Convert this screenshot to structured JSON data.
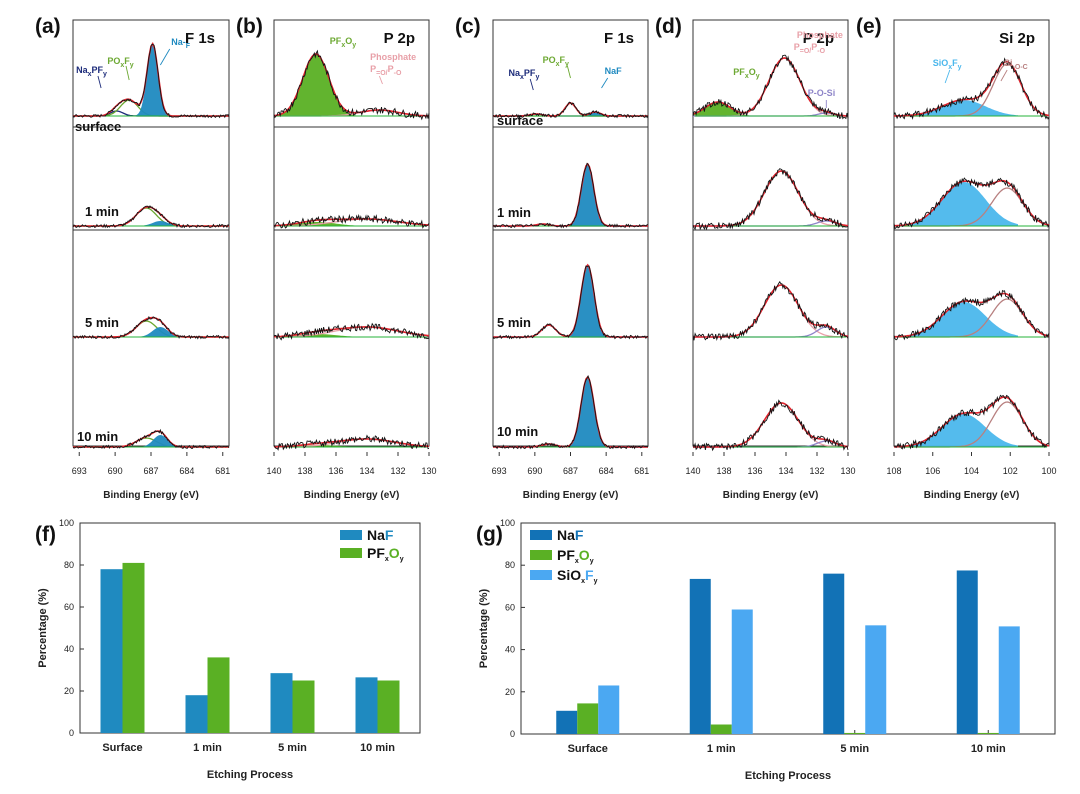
{
  "colors": {
    "naf": "#1f8ac0",
    "pfxoy": "#5ab024",
    "pfxoy_line": "#6ca832",
    "sioxfy": "#4bb7ec",
    "naf_g": "#1272b6",
    "sioxfy_g": "#4ba8f2",
    "envelope": "#e1232d",
    "data": "#141414",
    "baseline": "#25b33a",
    "naxpfy": "#1c2b7a",
    "phosphate": "#e8a0a8",
    "pos": "#8f86c9",
    "sioc": "#b88080"
  },
  "spectra": {
    "xlabel": "Binding Energy (eV)",
    "rows": [
      "surface",
      "1 min",
      "5 min",
      "10 min"
    ],
    "panels": [
      {
        "label": "(a)",
        "title": "F 1s",
        "row_labels": true,
        "ticks": [
          "693",
          "690",
          "687",
          "684",
          "681"
        ],
        "annotations": [
          {
            "parts": [
              "Na",
              "x",
              "PF",
              "y"
            ],
            "color": "#1c2b7a"
          },
          {
            "parts": [
              "PO",
              "x",
              "F",
              "y"
            ],
            "color": "#6ca832"
          },
          {
            "parts": [
              "Na-",
              "F"
            ],
            "color": "#1f8ac0"
          }
        ]
      },
      {
        "label": "(b)",
        "title": "P 2p",
        "row_labels": false,
        "ticks": [
          "140",
          "138",
          "136",
          "134",
          "132",
          "130"
        ],
        "annotations": [
          {
            "parts": [
              "PF",
              "x",
              "O",
              "y"
            ],
            "color": "#6ca832"
          },
          {
            "parts": [
              "Phosphate"
            ],
            "color": "#e8a0a8"
          },
          {
            "parts": [
              "P",
              "=O/",
              "P",
              "-O"
            ],
            "color": "#e8a0a8"
          }
        ]
      },
      {
        "label": "(c)",
        "title": "F 1s",
        "row_labels": true,
        "ticks": [
          "693",
          "690",
          "687",
          "684",
          "681"
        ],
        "annotations": [
          {
            "parts": [
              "Na",
              "x",
              "PF",
              "y"
            ],
            "color": "#1c2b7a"
          },
          {
            "parts": [
              "PO",
              "x",
              "F",
              "y"
            ],
            "color": "#6ca832"
          },
          {
            "parts": [
              "NaF"
            ],
            "color": "#1f8ac0"
          }
        ]
      },
      {
        "label": "(d)",
        "title": "P 2p",
        "row_labels": false,
        "ticks": [
          "140",
          "138",
          "136",
          "134",
          "132",
          "130"
        ],
        "annotations": [
          {
            "parts": [
              "PF",
              "x",
              "O",
              "y"
            ],
            "color": "#6ca832"
          },
          {
            "parts": [
              "Phosphate"
            ],
            "color": "#e8a0a8"
          },
          {
            "parts": [
              "P",
              "=O/",
              "P",
              "-O"
            ],
            "color": "#e8a0a8"
          },
          {
            "parts": [
              "P-O-Si"
            ],
            "color": "#8f86c9"
          }
        ]
      },
      {
        "label": "(e)",
        "title": "Si 2p",
        "row_labels": false,
        "ticks": [
          "108",
          "106",
          "104",
          "102",
          "100"
        ],
        "annotations": [
          {
            "parts": [
              "SiO",
              "x",
              "F",
              "y"
            ],
            "color": "#4bb7ec"
          },
          {
            "parts": [
              "Si",
              "-O-C"
            ],
            "color": "#b88080"
          }
        ]
      }
    ]
  },
  "chart_data": [
    {
      "panel": "(f)",
      "type": "bar",
      "title": "",
      "xlabel": "Etching Process",
      "ylabel": "Percentage (%)",
      "ylim": [
        0,
        100
      ],
      "yticks": [
        "0",
        "20",
        "40",
        "60",
        "80",
        "100"
      ],
      "categories": [
        "Surface",
        "1 min",
        "5 min",
        "10 min"
      ],
      "series": [
        {
          "name": "NaF",
          "legend_parts": [
            "Na",
            "F"
          ],
          "values": [
            78,
            18,
            28.5,
            26.5
          ]
        },
        {
          "name": "PFxOy",
          "legend_parts": [
            "PF",
            "x",
            "O",
            "y"
          ],
          "values": [
            81,
            36,
            25,
            25
          ]
        }
      ],
      "legend": "top-right"
    },
    {
      "panel": "(g)",
      "type": "bar",
      "title": "",
      "xlabel": "Etching Process",
      "ylabel": "Percentage (%)",
      "ylim": [
        0,
        100
      ],
      "yticks": [
        "0",
        "20",
        "40",
        "60",
        "80",
        "100"
      ],
      "categories": [
        "Surface",
        "1 min",
        "5 min",
        "10 min"
      ],
      "series": [
        {
          "name": "NaF",
          "legend_parts": [
            "Na",
            "F"
          ],
          "values": [
            11,
            73.5,
            76,
            77.5
          ]
        },
        {
          "name": "PFxOy",
          "legend_parts": [
            "PF",
            "x",
            "O",
            "y"
          ],
          "values": [
            14.5,
            4.5,
            0.5,
            0.5
          ]
        },
        {
          "name": "SiOxFy",
          "legend_parts": [
            "SiO",
            "x",
            "F",
            "y"
          ],
          "values": [
            23,
            59,
            51.5,
            51
          ]
        }
      ],
      "legend": "top-left"
    }
  ]
}
